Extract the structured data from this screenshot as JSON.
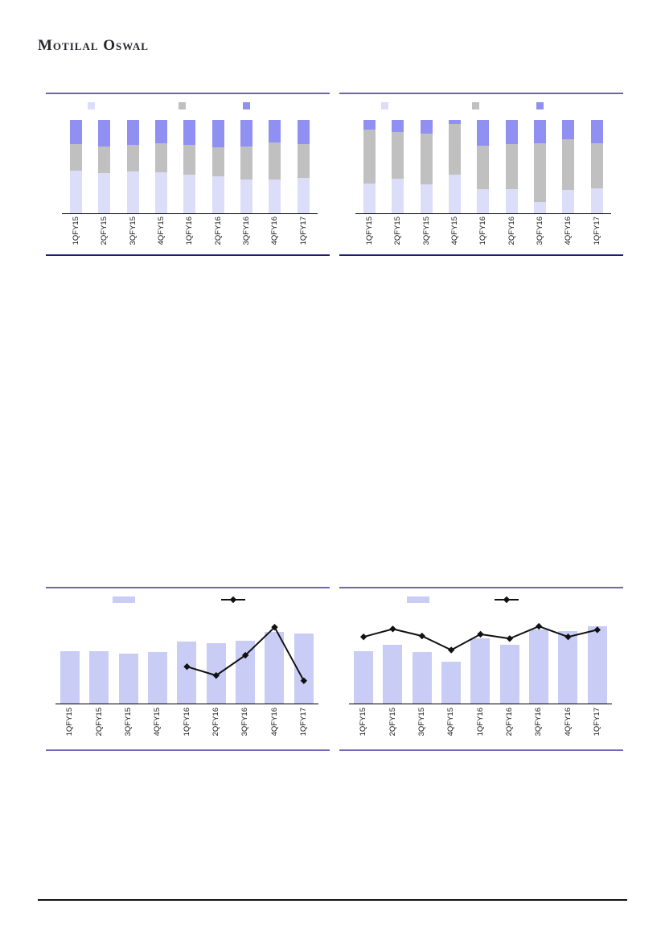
{
  "header": {
    "logo": "Motilal Oswal"
  },
  "colors": {
    "border_purple": "#7165b3",
    "border_navy": "#1b1b78",
    "segment_light_lavender": "#dcddf8",
    "segment_gray": "#c0c0c0",
    "segment_purple": "#8f90f2",
    "bottom_bar_lavender": "#c9ccf5",
    "line_black": "#111111",
    "axis_black": "#000000"
  },
  "categories": [
    "1QFY15",
    "2QFY15",
    "3QFY15",
    "4QFY15",
    "1QFY16",
    "2QFY16",
    "3QFY16",
    "4QFY16",
    "1QFY17"
  ],
  "chart_data": [
    {
      "id": "top-left",
      "type": "bar",
      "stacked": true,
      "units": "percent of bar height (estimated from pixels; axis/value labels not shown in image)",
      "categories": [
        "1QFY15",
        "2QFY15",
        "3QFY15",
        "4QFY15",
        "1QFY16",
        "2QFY16",
        "3QFY16",
        "4QFY16",
        "1QFY17"
      ],
      "series": [
        {
          "name": "bottom-light",
          "color": "#dcddf8",
          "values": [
            46,
            43,
            45,
            44,
            41,
            40,
            36,
            36,
            38
          ]
        },
        {
          "name": "middle-gray",
          "color": "#c0c0c0",
          "values": [
            28,
            29,
            28,
            31,
            32,
            31,
            36,
            40,
            36
          ]
        },
        {
          "name": "top-purple",
          "color": "#8f90f2",
          "values": [
            26,
            28,
            27,
            25,
            27,
            29,
            28,
            24,
            26
          ]
        }
      ],
      "legend": {
        "position": "top",
        "entries": [
          "light-swatch",
          "gray-swatch",
          "purple-swatch"
        ],
        "labels_visible": false
      },
      "title": "",
      "xlabel": "",
      "ylabel": "",
      "grid": false
    },
    {
      "id": "top-right",
      "type": "bar",
      "stacked": true,
      "units": "percent of bar height (estimated from pixels; axis/value labels not shown in image)",
      "categories": [
        "1QFY15",
        "2QFY15",
        "3QFY15",
        "4QFY15",
        "1QFY16",
        "2QFY16",
        "3QFY16",
        "4QFY16",
        "1QFY17"
      ],
      "series": [
        {
          "name": "bottom-light",
          "color": "#dcddf8",
          "values": [
            32,
            37,
            31,
            41,
            26,
            26,
            12,
            25,
            27
          ]
        },
        {
          "name": "middle-gray",
          "color": "#c0c0c0",
          "values": [
            58,
            50,
            54,
            55,
            46,
            48,
            63,
            54,
            48
          ]
        },
        {
          "name": "top-purple",
          "color": "#8f90f2",
          "values": [
            10,
            13,
            15,
            4,
            28,
            26,
            25,
            21,
            25
          ]
        }
      ],
      "legend": {
        "position": "top",
        "entries": [
          "light-swatch",
          "gray-swatch",
          "purple-swatch"
        ],
        "labels_visible": false
      },
      "title": "",
      "xlabel": "",
      "ylabel": "",
      "grid": false
    },
    {
      "id": "bottom-left",
      "type": "bar+line",
      "units": "relative scale 0-100 (estimated from pixels; axis/value labels not shown in image)",
      "categories": [
        "1QFY15",
        "2QFY15",
        "3QFY15",
        "4QFY15",
        "1QFY16",
        "2QFY16",
        "3QFY16",
        "4QFY16",
        "1QFY17"
      ],
      "bars": {
        "name": "bars",
        "color": "#c9ccf5",
        "values": [
          60,
          60,
          57,
          59,
          71,
          69,
          72,
          82,
          80
        ]
      },
      "line": {
        "name": "line",
        "color": "#111111",
        "marker": "diamond",
        "values": [
          null,
          null,
          null,
          null,
          42,
          32,
          55,
          87,
          26
        ]
      },
      "legend": {
        "position": "top",
        "entries": [
          "bar-swatch",
          "line-swatch"
        ],
        "labels_visible": false
      },
      "title": "",
      "xlabel": "",
      "ylabel": "",
      "grid": false
    },
    {
      "id": "bottom-right",
      "type": "bar+line",
      "units": "relative scale 0-100 (estimated from pixels; axis/value labels not shown in image)",
      "categories": [
        "1QFY15",
        "2QFY15",
        "3QFY15",
        "4QFY15",
        "1QFY16",
        "2QFY16",
        "3QFY16",
        "4QFY16",
        "1QFY17"
      ],
      "bars": {
        "name": "bars",
        "color": "#c9ccf5",
        "values": [
          60,
          67,
          59,
          48,
          74,
          67,
          84,
          83,
          88
        ]
      },
      "line": {
        "name": "line",
        "color": "#111111",
        "marker": "diamond",
        "values": [
          76,
          85,
          77,
          61,
          79,
          74,
          88,
          76,
          84
        ]
      },
      "legend": {
        "position": "top",
        "entries": [
          "bar-swatch",
          "line-swatch"
        ],
        "labels_visible": false
      },
      "title": "",
      "xlabel": "",
      "ylabel": "",
      "grid": false
    }
  ]
}
